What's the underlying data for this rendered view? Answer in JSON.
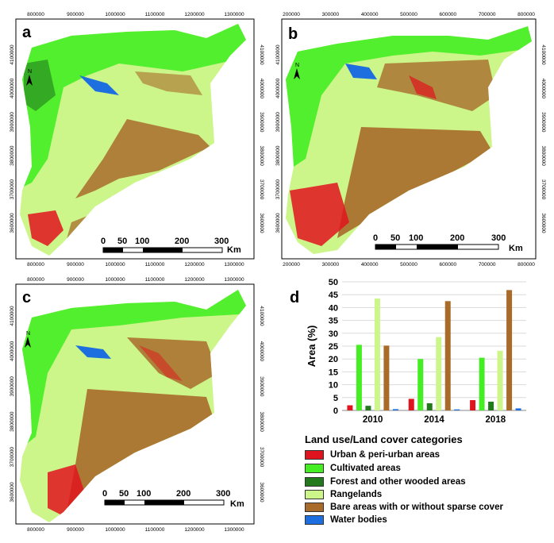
{
  "panels": {
    "a": {
      "label": "a",
      "x_ticks": [
        "800000",
        "900000",
        "1000000",
        "1100000",
        "1200000",
        "1300000"
      ],
      "y_ticks": [
        "4100000",
        "4000000",
        "3900000",
        "3800000",
        "3700000",
        "3600000"
      ]
    },
    "b": {
      "label": "b",
      "x_ticks": [
        "200000",
        "300000",
        "400000",
        "500000",
        "600000",
        "700000",
        "800000"
      ],
      "y_ticks": [
        "4100000",
        "4000000",
        "3900000",
        "3800000",
        "3700000",
        "3600000"
      ]
    },
    "c": {
      "label": "c",
      "x_ticks": [
        "800000",
        "900000",
        "1000000",
        "1100000",
        "1200000",
        "1300000"
      ],
      "y_ticks": [
        "4100000",
        "4000000",
        "3900000",
        "3800000",
        "3700000",
        "3600000"
      ]
    },
    "d": {
      "label": "d"
    }
  },
  "scale_bar": {
    "labels": [
      "0",
      "50",
      "100",
      "200",
      "300"
    ],
    "unit": "Km"
  },
  "north_arrow": {
    "label": "N"
  },
  "colors": {
    "urban": "#e0141e",
    "cultivated": "#44ee22",
    "forest": "#227a1c",
    "rangelands": "#ccf58a",
    "bare": "#a86b2a",
    "water": "#1d6fe0"
  },
  "chart_data": {
    "type": "bar",
    "categories": [
      "2010",
      "2014",
      "2018"
    ],
    "ylabel": "Area (%)",
    "xlabel": "",
    "ylim": [
      0,
      50
    ],
    "yticks": [
      0,
      5,
      10,
      15,
      20,
      25,
      30,
      35,
      40,
      45,
      50
    ],
    "grid": true,
    "series": [
      {
        "name": "Urban & peri-urban areas",
        "color": "#e0141e",
        "values": [
          2.0,
          4.5,
          4.0
        ]
      },
      {
        "name": "Cultivated areas",
        "color": "#44ee22",
        "values": [
          25.5,
          20.0,
          20.5
        ]
      },
      {
        "name": "Forest and other wooded areas",
        "color": "#227a1c",
        "values": [
          1.8,
          2.8,
          3.4
        ]
      },
      {
        "name": "Rangelands",
        "color": "#ccf58a",
        "values": [
          43.5,
          28.5,
          23.2
        ]
      },
      {
        "name": "Bare areas with or without sparse cover",
        "color": "#a86b2a",
        "values": [
          25.2,
          42.5,
          46.8
        ]
      },
      {
        "name": "Water bodies",
        "color": "#1d6fe0",
        "values": [
          0.5,
          0.4,
          0.8
        ]
      }
    ]
  },
  "legend": {
    "title": "Land use/Land cover categories",
    "items": [
      {
        "label": "Urban & peri-urban areas",
        "color": "#e0141e"
      },
      {
        "label": "Cultivated areas",
        "color": "#44ee22"
      },
      {
        "label": "Forest and other wooded areas",
        "color": "#227a1c"
      },
      {
        "label": "Rangelands",
        "color": "#ccf58a"
      },
      {
        "label": "Bare areas with or without sparse cover",
        "color": "#a86b2a"
      },
      {
        "label": "Water bodies",
        "color": "#1d6fe0"
      }
    ]
  }
}
